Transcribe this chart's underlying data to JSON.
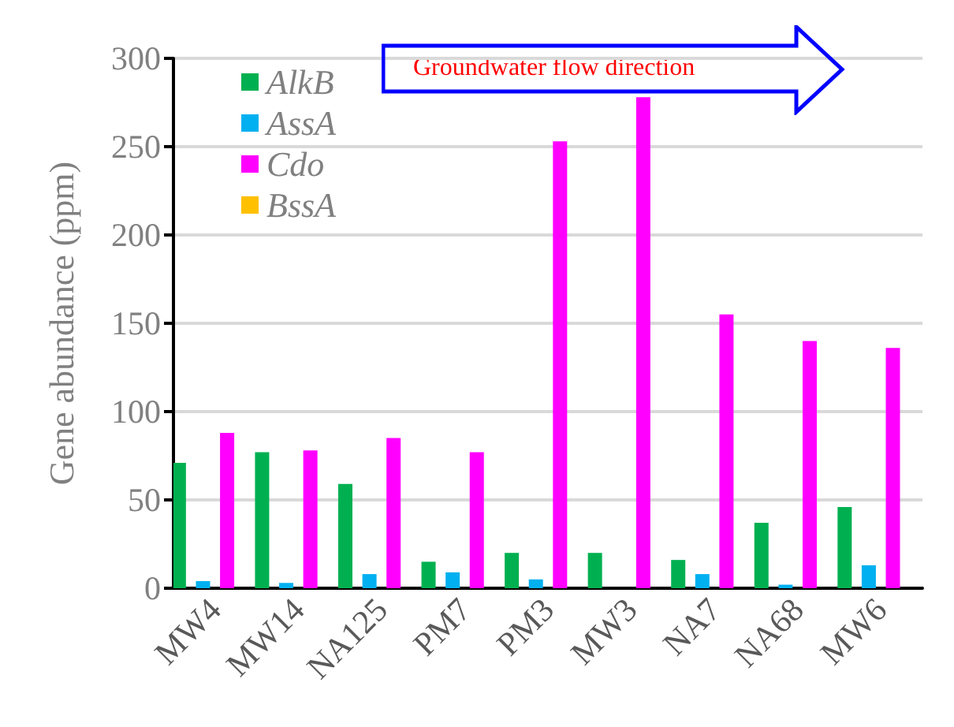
{
  "chart_data": {
    "type": "bar",
    "ylabel": "Gene abundance (ppm)",
    "categories": [
      "MW4",
      "MW14",
      "NA125",
      "PM7",
      "PM3",
      "MW3",
      "NA7",
      "NA68",
      "MW6"
    ],
    "series": [
      {
        "name": "AlkB",
        "color": "#00b050",
        "values": [
          71,
          77,
          59,
          15,
          20,
          20,
          16,
          37,
          46
        ]
      },
      {
        "name": "AssA",
        "color": "#00b0f0",
        "values": [
          4,
          3,
          8,
          9,
          5,
          0,
          8,
          2,
          13
        ]
      },
      {
        "name": "Cdo",
        "color": "#ff00ff",
        "values": [
          88,
          78,
          85,
          77,
          253,
          278,
          155,
          140,
          136
        ]
      },
      {
        "name": "BssA",
        "color": "#ffc000",
        "values": [
          0,
          0,
          0,
          0,
          0,
          0,
          0,
          0,
          0
        ]
      }
    ],
    "ylim": [
      0,
      300
    ],
    "yticks": [
      0,
      50,
      100,
      150,
      200,
      250,
      300
    ],
    "grid": "y",
    "legend": "top left",
    "annotations": [
      "Groundwater flow direction"
    ]
  }
}
